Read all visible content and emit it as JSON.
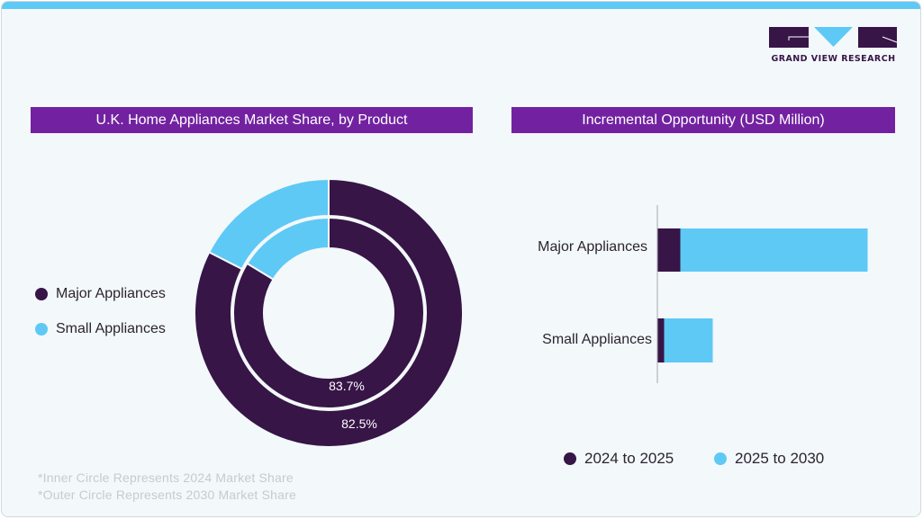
{
  "brand": {
    "name": "GRAND VIEW RESEARCH",
    "colors": {
      "dark": "#371547",
      "light": "#5ec9f5",
      "accent": "#7222a0"
    }
  },
  "left_panel": {
    "title": "U.K. Home Appliances Market Share, by Product",
    "legend": [
      {
        "label": "Major Appliances",
        "color": "#371547"
      },
      {
        "label": "Small Appliances",
        "color": "#5ec9f5"
      }
    ],
    "footnotes": [
      "*Inner Circle Represents 2024 Market Share",
      "*Outer Circle Represents 2030 Market Share"
    ]
  },
  "right_panel": {
    "title": "Incremental Opportunity (USD Million)",
    "legend": [
      {
        "label": "2024 to 2025",
        "color": "#371547"
      },
      {
        "label": "2025 to 2030",
        "color": "#5ec9f5"
      }
    ]
  },
  "chart_data": [
    {
      "type": "pie",
      "variant": "nested-donut",
      "title": "U.K. Home Appliances Market Share, by Product",
      "categories": [
        "Major Appliances",
        "Small Appliances"
      ],
      "colors": [
        "#371547",
        "#5ec9f5"
      ],
      "rings": [
        {
          "name": "2024",
          "position": "inner",
          "values": [
            83.7,
            16.3
          ],
          "label": "83.7%"
        },
        {
          "name": "2030",
          "position": "outer",
          "values": [
            82.5,
            17.5
          ],
          "label": "82.5%"
        }
      ],
      "legend_position": "left"
    },
    {
      "type": "bar",
      "orientation": "horizontal",
      "stacked": true,
      "title": "Incremental Opportunity (USD Million)",
      "categories": [
        "Major Appliances",
        "Small Appliances"
      ],
      "series": [
        {
          "name": "2024 to 2025",
          "color": "#371547",
          "values": [
            25,
            7
          ]
        },
        {
          "name": "2025 to 2030",
          "color": "#5ec9f5",
          "values": [
            208,
            54
          ]
        }
      ],
      "units_note": "relative values (no axis ticks shown)",
      "xlim": [
        0,
        240
      ],
      "legend_position": "bottom"
    }
  ]
}
